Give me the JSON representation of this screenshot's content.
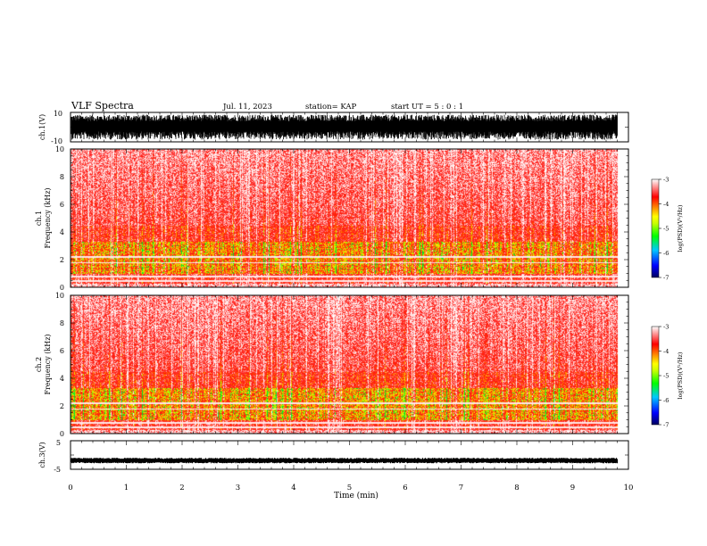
{
  "header": {
    "title": "VLF Spectra",
    "date": "Jul. 11, 2023",
    "station": "station= KAP",
    "start_time": "start UT =  5 : 0 : 1"
  },
  "chart_data": [
    {
      "type": "line",
      "name": "waveform-ch1",
      "ylabel": "ch.1(V)",
      "xlim": [
        0,
        10
      ],
      "ylim": [
        -10,
        10
      ],
      "ytick_labels": [
        "10",
        "-10"
      ],
      "description_level": "dense waveform filling about -8 to 8 V",
      "data_end_min": 9.8
    },
    {
      "type": "heatmap",
      "name": "spectrogram-ch1",
      "ylabel": "ch.1",
      "ylabel2": "Frequency (kHz)",
      "xlim": [
        0,
        10
      ],
      "ylim": [
        0,
        10
      ],
      "ytick_labels": [
        "0",
        "2",
        "4",
        "6",
        "8",
        "10"
      ],
      "data_end_min": 9.8,
      "colorbar": {
        "label": "log(PSD)(V²/Hz)",
        "range": [
          -7,
          -3
        ],
        "tick_labels": [
          "-3",
          "-4",
          "-5",
          "-6",
          "-7"
        ],
        "colors": [
          "#000080",
          "#0000ff",
          "#00c8ff",
          "#00ff00",
          "#c8ff00",
          "#ffff00",
          "#ff8000",
          "#ff0000",
          "#ffffff"
        ]
      }
    },
    {
      "type": "heatmap",
      "name": "spectrogram-ch2",
      "ylabel": "ch.2",
      "ylabel2": "Frequency (kHz)",
      "xlim": [
        0,
        10
      ],
      "ylim": [
        0,
        10
      ],
      "ytick_labels": [
        "0",
        "2",
        "4",
        "6",
        "8",
        "10"
      ],
      "data_end_min": 9.8,
      "colorbar": {
        "label": "log(PSD)(V²/Hz)",
        "range": [
          -7,
          -3
        ],
        "tick_labels": [
          "-3",
          "-4",
          "-5",
          "-6",
          "-7"
        ],
        "colors": [
          "#000080",
          "#0000ff",
          "#00c8ff",
          "#00ff00",
          "#c8ff00",
          "#ffff00",
          "#ff8000",
          "#ff0000",
          "#ffffff"
        ]
      }
    },
    {
      "type": "line",
      "name": "waveform-ch3",
      "ylabel": "ch.3(V)",
      "xlim": [
        0,
        10
      ],
      "ylim": [
        -5,
        5
      ],
      "ytick_labels": [
        "5",
        "-5"
      ],
      "description_level": "thin band near -2 V",
      "data_end_min": 9.8
    }
  ],
  "xaxis": {
    "label": "Time (min)",
    "tick_labels": [
      "0",
      "1",
      "2",
      "3",
      "4",
      "5",
      "6",
      "7",
      "8",
      "9",
      "10"
    ]
  }
}
